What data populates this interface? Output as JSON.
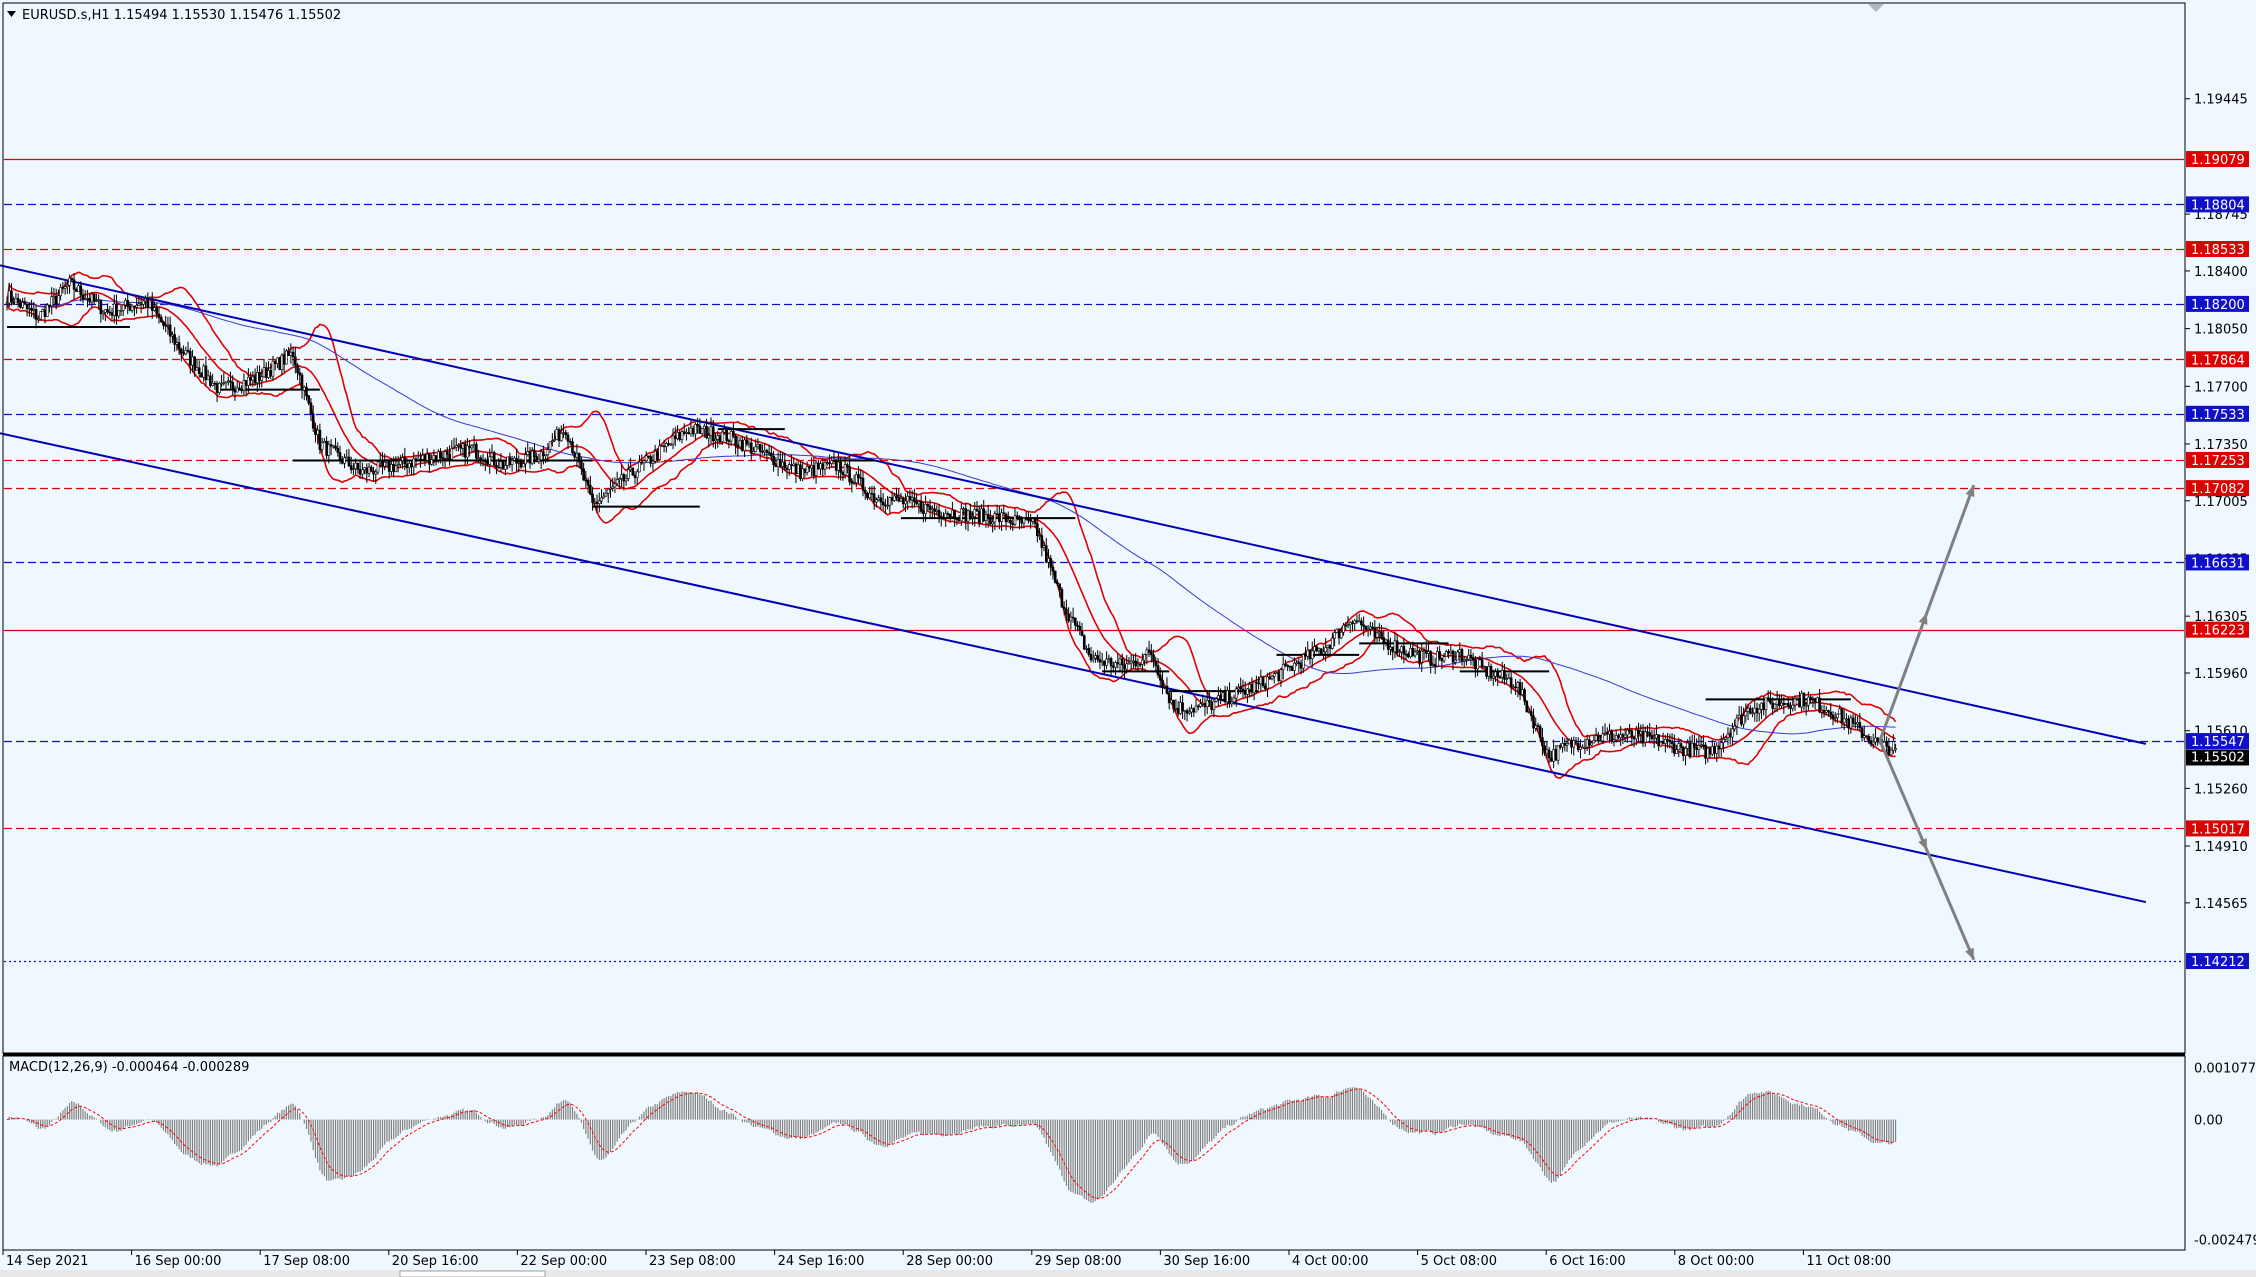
{
  "header": {
    "title": "EURUSD.s,H1  1.15494 1.15530 1.15476 1.15502",
    "menu_icon": "triangle-down-icon"
  },
  "colors": {
    "background": "#f0f8ff",
    "frame": "#000000",
    "candle": "#000000",
    "bollinger": "#e00000",
    "moving_average": "#3a3ad0",
    "channel": "#0000b4",
    "level_red": "#dd0000",
    "level_blue": "#1010c8",
    "projection": "#808080",
    "macd_hist": "#808080",
    "macd_signal": "#ff0000"
  },
  "price_axis": {
    "ticks": [
      "1.19445",
      "1.18745",
      "1.18400",
      "1.18050",
      "1.17700",
      "1.17350",
      "1.17005",
      "1.16655",
      "1.16305",
      "1.15960",
      "1.15610",
      "1.15260",
      "1.14910",
      "1.14565"
    ],
    "range": [
      1.1366,
      1.2002
    ]
  },
  "levels": [
    {
      "price": 1.19079,
      "label": "1.19079",
      "color": "#dd0000",
      "style": "solid"
    },
    {
      "price": 1.18804,
      "label": "1.18804",
      "color": "#1010c8",
      "style": "dashed"
    },
    {
      "price": 1.18533,
      "label": "1.18533",
      "color": "#dd0000",
      "style": "dashed"
    },
    {
      "price": 1.182,
      "label": "1.18200",
      "color": "#1010c8",
      "style": "dashed"
    },
    {
      "price": 1.17864,
      "label": "1.17864",
      "color": "#dd0000",
      "style": "dashed"
    },
    {
      "price": 1.17533,
      "label": "1.17533",
      "color": "#1010c8",
      "style": "dashed"
    },
    {
      "price": 1.17253,
      "label": "1.17253",
      "color": "#dd0000",
      "style": "dashed"
    },
    {
      "price": 1.17082,
      "label": "1.17082",
      "color": "#dd0000",
      "style": "dashed"
    },
    {
      "price": 1.16631,
      "label": "1.16631",
      "color": "#1010c8",
      "style": "dashed"
    },
    {
      "price": 1.16223,
      "label": "1.16223",
      "color": "#dd0000",
      "style": "solid"
    },
    {
      "price": 1.15547,
      "label": "1.15547",
      "color": "#1010c8",
      "style": "dashed"
    },
    {
      "price": 1.15017,
      "label": "1.15017",
      "color": "#dd0000",
      "style": "dashed"
    },
    {
      "price": 1.14212,
      "label": "1.14212",
      "color": "#1010c8",
      "style": "dotted"
    }
  ],
  "current_price": {
    "price": 1.15502,
    "label": "1.15502"
  },
  "time_axis": {
    "labels": [
      "14 Sep 2021",
      "16 Sep 00:00",
      "17 Sep 08:00",
      "20 Sep 16:00",
      "22 Sep 00:00",
      "23 Sep 08:00",
      "24 Sep 16:00",
      "28 Sep 00:00",
      "29 Sep 08:00",
      "30 Sep 16:00",
      "4 Oct 00:00",
      "5 Oct 08:00",
      "6 Oct 16:00",
      "8 Oct 00:00",
      "11 Oct 08:00"
    ]
  },
  "chart_data": {
    "type": "candlestick",
    "symbol": "EURUSD.s",
    "timeframe": "H1",
    "ohlc": [
      1.15494,
      1.1553,
      1.15476,
      1.15502
    ],
    "anchors": [
      [
        0,
        1.1825
      ],
      [
        14,
        1.1812
      ],
      [
        28,
        1.1832
      ],
      [
        45,
        1.1815
      ],
      [
        62,
        1.1822
      ],
      [
        78,
        1.1792
      ],
      [
        95,
        1.1768
      ],
      [
        112,
        1.1775
      ],
      [
        128,
        1.179
      ],
      [
        140,
        1.1735
      ],
      [
        158,
        1.1718
      ],
      [
        175,
        1.1722
      ],
      [
        192,
        1.1728
      ],
      [
        208,
        1.1732
      ],
      [
        222,
        1.1722
      ],
      [
        238,
        1.1728
      ],
      [
        250,
        1.1745
      ],
      [
        262,
        1.1698
      ],
      [
        275,
        1.1712
      ],
      [
        290,
        1.1728
      ],
      [
        305,
        1.1744
      ],
      [
        322,
        1.174
      ],
      [
        340,
        1.1728
      ],
      [
        355,
        1.1718
      ],
      [
        372,
        1.1722
      ],
      [
        388,
        1.1703
      ],
      [
        400,
        1.17
      ],
      [
        415,
        1.1695
      ],
      [
        430,
        1.1692
      ],
      [
        445,
        1.169
      ],
      [
        460,
        1.1685
      ],
      [
        472,
        1.164
      ],
      [
        485,
        1.1605
      ],
      [
        500,
        1.16
      ],
      [
        512,
        1.1608
      ],
      [
        522,
        1.1575
      ],
      [
        535,
        1.1575
      ],
      [
        548,
        1.1582
      ],
      [
        562,
        1.159
      ],
      [
        575,
        1.16
      ],
      [
        590,
        1.1612
      ],
      [
        602,
        1.163
      ],
      [
        612,
        1.1618
      ],
      [
        625,
        1.161
      ],
      [
        638,
        1.1604
      ],
      [
        650,
        1.1608
      ],
      [
        662,
        1.1597
      ],
      [
        675,
        1.159
      ],
      [
        682,
        1.157
      ],
      [
        690,
        1.1545
      ],
      [
        700,
        1.1553
      ],
      [
        712,
        1.1557
      ],
      [
        725,
        1.1558
      ],
      [
        738,
        1.1555
      ],
      [
        750,
        1.155
      ],
      [
        762,
        1.1548
      ],
      [
        770,
        1.156
      ],
      [
        780,
        1.1575
      ],
      [
        792,
        1.1578
      ],
      [
        805,
        1.158
      ],
      [
        818,
        1.1572
      ],
      [
        828,
        1.1562
      ],
      [
        838,
        1.1552
      ],
      [
        845,
        1.155
      ]
    ],
    "upper_channel": {
      "from": [
        -25,
        1.185
      ],
      "to": [
        957,
        1.1553
      ]
    },
    "lower_channel": {
      "from": [
        -25,
        1.1748
      ],
      "to": [
        957,
        1.1457
      ]
    },
    "projections": [
      {
        "from": [
          838,
          1.1555
        ],
        "to": [
          880,
          1.171
        ]
      },
      {
        "from": [
          838,
          1.1555
        ],
        "to": [
          880,
          1.1422
        ]
      }
    ],
    "pivots": [
      [
        0,
        55,
        1.1806
      ],
      [
        95,
        140,
        1.1768
      ],
      [
        128,
        262,
        1.1725
      ],
      [
        262,
        310,
        1.1697
      ],
      [
        318,
        348,
        1.1744
      ],
      [
        370,
        388,
        1.1725
      ],
      [
        400,
        478,
        1.169
      ],
      [
        490,
        520,
        1.1597
      ],
      [
        520,
        560,
        1.1585
      ],
      [
        568,
        605,
        1.1607
      ],
      [
        605,
        645,
        1.1614
      ],
      [
        650,
        690,
        1.1597
      ],
      [
        760,
        825,
        1.158
      ]
    ],
    "macd": {
      "label": "MACD(12,26,9) -0.000464 -0.000289",
      "params": [
        12,
        26,
        9
      ],
      "main": -0.000464,
      "signal": -0.000289,
      "axis_ticks": [
        "0.001077",
        "0.00",
        "-0.002479"
      ],
      "range": [
        -0.00265,
        0.00127
      ]
    }
  }
}
